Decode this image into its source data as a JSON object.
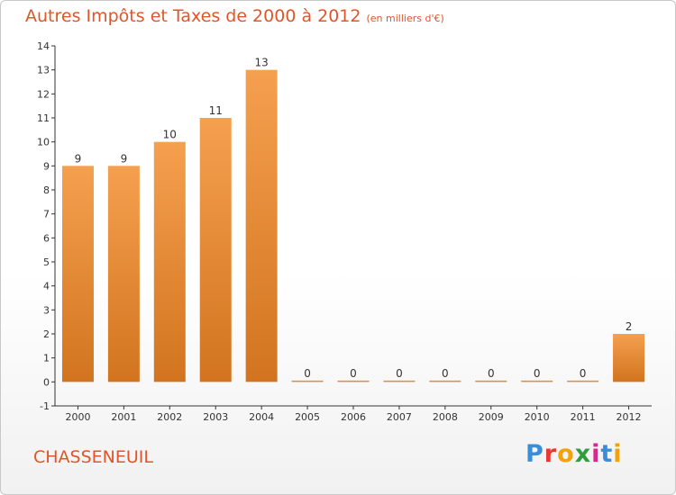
{
  "chart_data": {
    "type": "bar",
    "title": "Autres Impôts et Taxes de 2000 à 2012",
    "subtitle": "(en milliers d'€)",
    "categories": [
      "2000",
      "2001",
      "2002",
      "2003",
      "2004",
      "2005",
      "2006",
      "2007",
      "2008",
      "2009",
      "2010",
      "2011",
      "2012"
    ],
    "values": [
      9,
      9,
      10,
      11,
      13,
      0,
      0,
      0,
      0,
      0,
      0,
      0,
      2
    ],
    "ylim": [
      -1,
      14
    ],
    "yticks": [
      -1,
      0,
      1,
      2,
      3,
      4,
      5,
      6,
      7,
      8,
      9,
      10,
      11,
      12,
      13,
      14
    ],
    "xlabel": "",
    "ylabel": "",
    "grid": false,
    "bar_color": "#f5a04f",
    "bar_color_dark": "#d2741f"
  },
  "place_name": "CHASSENEUIL",
  "logo": {
    "letters": [
      "P",
      "r",
      "o",
      "x",
      "i",
      "t",
      "i"
    ],
    "colors": [
      "#3a8ed9",
      "#e8382f",
      "#f2a20a",
      "#2e9e3d",
      "#d42a8a",
      "#3a8ed9",
      "#f2a20a"
    ]
  },
  "colors": {
    "title": "#e0562a",
    "axis": "#333333"
  }
}
